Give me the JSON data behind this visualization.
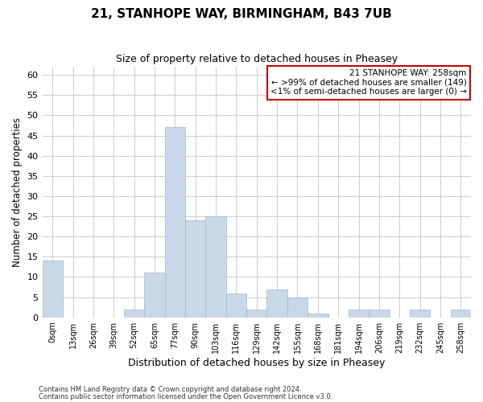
{
  "title_line1": "21, STANHOPE WAY, BIRMINGHAM, B43 7UB",
  "title_line2": "Size of property relative to detached houses in Pheasey",
  "xlabel": "Distribution of detached houses by size in Pheasey",
  "ylabel": "Number of detached properties",
  "bar_labels": [
    "0sqm",
    "13sqm",
    "26sqm",
    "39sqm",
    "52sqm",
    "65sqm",
    "77sqm",
    "90sqm",
    "103sqm",
    "116sqm",
    "129sqm",
    "142sqm",
    "155sqm",
    "168sqm",
    "181sqm",
    "194sqm",
    "206sqm",
    "219sqm",
    "232sqm",
    "245sqm",
    "258sqm"
  ],
  "bar_values": [
    14,
    0,
    0,
    0,
    2,
    11,
    47,
    24,
    25,
    6,
    2,
    7,
    5,
    1,
    0,
    2,
    2,
    0,
    2,
    0,
    2
  ],
  "bar_color": "#c8d8e8",
  "bar_edgecolor": "#a0b8cc",
  "grid_color": "#cccccc",
  "annotation_box_edgecolor": "#cc0000",
  "annotation_lines": [
    "21 STANHOPE WAY: 258sqm",
    "← >99% of detached houses are smaller (149)",
    "<1% of semi-detached houses are larger (0) →"
  ],
  "ylim": [
    0,
    62
  ],
  "yticks": [
    0,
    5,
    10,
    15,
    20,
    25,
    30,
    35,
    40,
    45,
    50,
    55,
    60
  ],
  "footer_line1": "Contains HM Land Registry data © Crown copyright and database right 2024.",
  "footer_line2": "Contains public sector information licensed under the Open Government Licence v3.0."
}
